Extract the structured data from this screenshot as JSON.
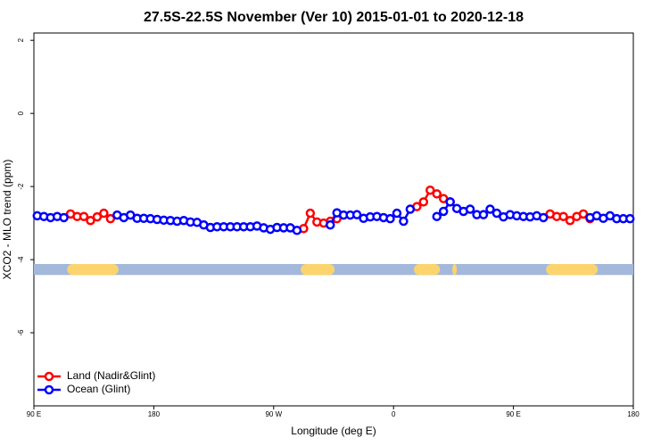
{
  "chart_data": {
    "type": "line",
    "title": "27.5S-22.5S November (Ver 10)   2015-01-01 to 2020-12-18",
    "x_label": "Longitude (deg E)",
    "y_label": "XCO2 - MLO trend (ppm)",
    "x": [
      92.5,
      97.5,
      102.5,
      107.5,
      112.5,
      117.5,
      122.5,
      127.5,
      132.5,
      137.5,
      142.5,
      147.5,
      152.5,
      157.5,
      162.5,
      167.5,
      172.5,
      177.5,
      182.5,
      187.5,
      192.5,
      197.5,
      202.5,
      207.5,
      212.5,
      217.5,
      222.5,
      227.5,
      232.5,
      237.5,
      242.5,
      247.5,
      252.5,
      257.5,
      262.5,
      267.5,
      272.5,
      277.5,
      282.5,
      287.5,
      292.5,
      297.5,
      302.5,
      307.5,
      312.5,
      317.5,
      322.5,
      327.5,
      332.5,
      337.5,
      342.5,
      347.5,
      352.5,
      357.5,
      362.5,
      367.5,
      372.5,
      377.5,
      382.5,
      387.5,
      392.5,
      397.5,
      402.5,
      407.5,
      412.5,
      417.5,
      422.5,
      427.5,
      432.5,
      437.5,
      442.5,
      447.5,
      452.5,
      457.5,
      462.5,
      467.5,
      472.5,
      477.5,
      482.5,
      487.5,
      492.5,
      497.5,
      502.5,
      507.5,
      512.5,
      517.5,
      522.5,
      527.5,
      532.5,
      537.5
    ],
    "series": [
      {
        "name": "Land (Nadir&Glint)",
        "color": "#ff0000",
        "values": [
          null,
          null,
          null,
          null,
          null,
          -2.75,
          -2.82,
          -2.82,
          -2.93,
          -2.83,
          -2.73,
          -2.88,
          null,
          null,
          null,
          null,
          null,
          null,
          null,
          null,
          null,
          null,
          null,
          null,
          null,
          null,
          null,
          null,
          null,
          null,
          null,
          null,
          null,
          null,
          null,
          null,
          null,
          null,
          null,
          null,
          -3.15,
          -2.73,
          -2.97,
          -3.0,
          -2.95,
          -2.88,
          null,
          null,
          null,
          null,
          null,
          null,
          null,
          null,
          null,
          null,
          null,
          -2.55,
          -2.42,
          -2.1,
          -2.2,
          -2.33,
          -2.42,
          null,
          null,
          null,
          null,
          null,
          null,
          null,
          null,
          null,
          null,
          null,
          null,
          null,
          null,
          -2.75,
          -2.82,
          -2.82,
          -2.93,
          -2.82,
          -2.75,
          -2.88,
          null,
          null,
          null,
          null,
          null,
          null
        ]
      },
      {
        "name": "Ocean (Glint)",
        "color": "#0000ff",
        "values": [
          -2.8,
          -2.82,
          -2.85,
          -2.82,
          -2.85,
          null,
          null,
          null,
          null,
          null,
          null,
          null,
          -2.78,
          -2.85,
          -2.78,
          -2.87,
          -2.87,
          -2.88,
          -2.9,
          -2.92,
          -2.93,
          -2.95,
          -2.93,
          -2.97,
          -2.98,
          -3.05,
          -3.12,
          -3.1,
          -3.1,
          -3.1,
          -3.1,
          -3.1,
          -3.1,
          -3.08,
          -3.13,
          -3.17,
          -3.12,
          -3.13,
          -3.13,
          -3.2,
          null,
          null,
          null,
          null,
          -3.05,
          -2.72,
          -2.78,
          -2.78,
          -2.77,
          -2.87,
          -2.83,
          -2.82,
          -2.85,
          -2.88,
          -2.73,
          -2.95,
          -2.62,
          null,
          null,
          null,
          -2.82,
          -2.68,
          -2.42,
          -2.6,
          -2.68,
          -2.62,
          -2.77,
          -2.77,
          -2.62,
          -2.73,
          -2.83,
          -2.77,
          -2.8,
          -2.82,
          -2.83,
          -2.8,
          -2.85,
          null,
          null,
          null,
          null,
          null,
          null,
          -2.85,
          -2.8,
          -2.87,
          -2.8,
          -2.88,
          -2.88,
          -2.88
        ]
      }
    ],
    "surface_mask": {
      "y_range": [
        -4.42,
        -4.12
      ],
      "ocean_color": "#a3b8db",
      "land_color": "#fbd46d",
      "land_segments": [
        [
          115,
          153.5
        ],
        [
          290.3,
          315.7
        ],
        [
          375.3,
          394.8
        ],
        [
          404.1,
          407.5
        ],
        [
          474.5,
          513.3
        ]
      ]
    },
    "xlim": [
      90,
      540
    ],
    "xticks": [
      {
        "value": 90,
        "label": "90 E"
      },
      {
        "value": 180,
        "label": "180"
      },
      {
        "value": 270,
        "label": "90 W"
      },
      {
        "value": 360,
        "label": "0"
      },
      {
        "value": 450,
        "label": "90 E"
      },
      {
        "value": 540,
        "label": "180"
      }
    ],
    "ylim": [
      -8,
      2.2
    ],
    "yticks": [
      2,
      0,
      -2,
      -4,
      -6
    ],
    "legend": "bottom-left"
  }
}
